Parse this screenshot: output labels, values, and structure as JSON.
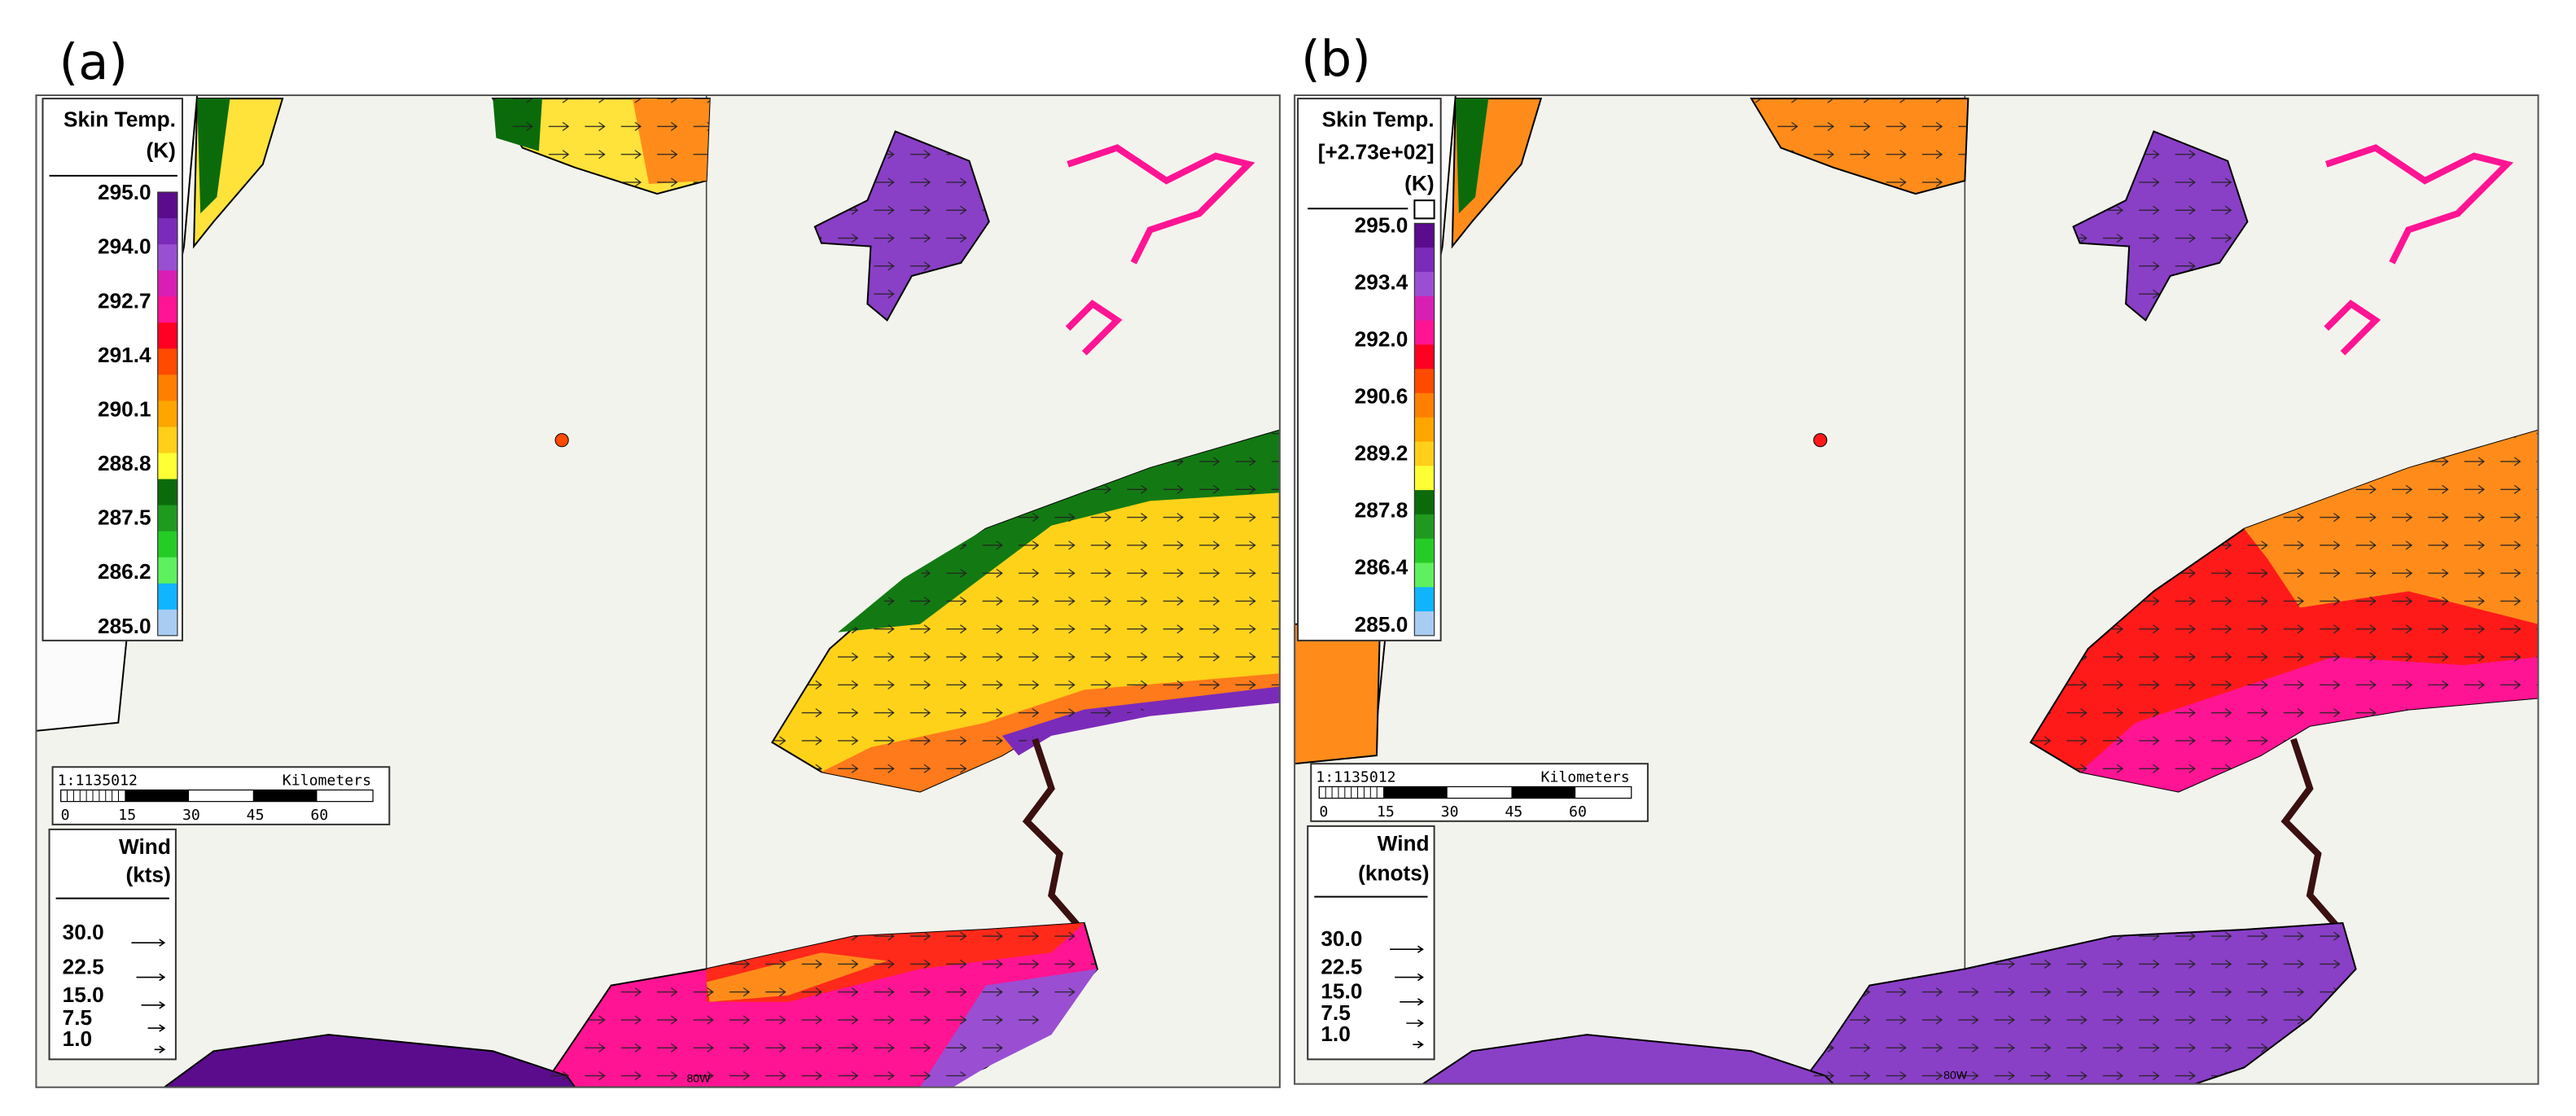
{
  "panels": [
    {
      "label": "(a)",
      "legend": {
        "title": [
          "Skin Temp.",
          "(K)"
        ],
        "ticks": [
          "295.0",
          "294.0",
          "292.7",
          "291.4",
          "290.1",
          "288.8",
          "287.5",
          "286.2",
          "285.0"
        ],
        "colors": [
          "#5a0c8c",
          "#7b2bb9",
          "#9a4fd2",
          "#d81fb4",
          "#ff1493",
          "#ff0022",
          "#ff4a00",
          "#ff7f00",
          "#ffa500",
          "#ffcf1a",
          "#ffff33",
          "#0b6b0b",
          "#1f9a1f",
          "#26cc26",
          "#5ef05e",
          "#10b4ff",
          "#a8ccf2"
        ]
      },
      "scale": {
        "ratio": "1:1135012",
        "unit": "Kilometers",
        "ticks": [
          "0",
          "15",
          "30",
          "45",
          "60"
        ]
      },
      "wind": {
        "title": [
          "Wind",
          "(kts)"
        ],
        "values": [
          "30.0",
          "22.5",
          "15.0",
          "7.5",
          "1.0"
        ]
      },
      "meridian": "80W"
    },
    {
      "label": "(b)",
      "legend": {
        "title": [
          "Skin Temp.",
          "[+2.73e+02]",
          "(K)"
        ],
        "ticks": [
          "295.0",
          "293.4",
          "292.0",
          "290.6",
          "289.2",
          "287.8",
          "286.4",
          "285.0"
        ],
        "colors": [
          "#5a0c8c",
          "#7b2bb9",
          "#9a4fd2",
          "#d81fb4",
          "#ff1493",
          "#ff0022",
          "#ff4a00",
          "#ff7f00",
          "#ffa500",
          "#ffcf1a",
          "#ffff33",
          "#0b6b0b",
          "#1f9a1f",
          "#26cc26",
          "#5ef05e",
          "#10b4ff",
          "#a8ccf2"
        ]
      },
      "scale": {
        "ratio": "1:1135012",
        "unit": "Kilometers",
        "ticks": [
          "0",
          "15",
          "30",
          "45",
          "60"
        ]
      },
      "wind": {
        "title": [
          "Wind",
          "(knots)"
        ],
        "values": [
          "30.0",
          "22.5",
          "15.0",
          "7.5",
          "1.0"
        ]
      },
      "meridian": "80W"
    }
  ]
}
